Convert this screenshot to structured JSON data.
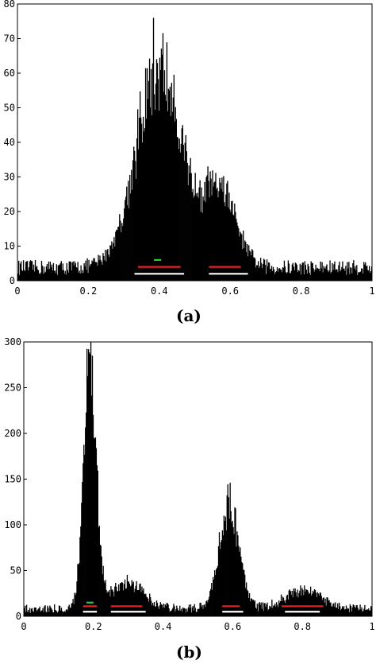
{
  "chart_data": [
    {
      "type": "histogram",
      "panel_label": "(a)",
      "title": "",
      "xlabel": "",
      "ylabel": "",
      "xlim": [
        0,
        1
      ],
      "ylim": [
        0,
        80
      ],
      "x_ticks": [
        0,
        0.2,
        0.4,
        0.6,
        0.8,
        1
      ],
      "x_tick_labels": [
        "0",
        "0.2",
        "0.4",
        "0.6",
        "0.8",
        "1"
      ],
      "y_ticks": [
        0,
        10,
        20,
        30,
        40,
        50,
        60,
        70,
        80
      ],
      "y_tick_labels": [
        "0",
        "10",
        "20",
        "30",
        "40",
        "50",
        "60",
        "70",
        "80"
      ],
      "bins": 450,
      "noise_floor": 4,
      "peak_max": 76,
      "components": [
        {
          "center": 0.4,
          "width": 0.065,
          "height": 57
        },
        {
          "center": 0.57,
          "width": 0.045,
          "height": 22
        }
      ],
      "intervals": [
        {
          "color": "#2ecc2e",
          "x": [
            0.385,
            0.405
          ],
          "y": 6
        },
        {
          "color": "#e62020",
          "x": [
            0.34,
            0.46
          ],
          "y": 4
        },
        {
          "color": "#e62020",
          "x": [
            0.54,
            0.63
          ],
          "y": 4
        },
        {
          "color": "#ffffff",
          "x": [
            0.33,
            0.47
          ],
          "y": 2
        },
        {
          "color": "#ffffff",
          "x": [
            0.54,
            0.65
          ],
          "y": 2
        }
      ]
    },
    {
      "type": "histogram",
      "panel_label": "(b)",
      "title": "",
      "xlabel": "",
      "ylabel": "",
      "xlim": [
        0,
        1
      ],
      "ylim": [
        0,
        300
      ],
      "x_ticks": [
        0,
        0.2,
        0.4,
        0.6,
        0.8,
        1
      ],
      "x_tick_labels": [
        "0",
        "0.2",
        "0.4",
        "0.6",
        "0.8",
        "1"
      ],
      "y_ticks": [
        0,
        50,
        100,
        150,
        200,
        250,
        300
      ],
      "y_tick_labels": [
        "0",
        "50",
        "100",
        "150",
        "200",
        "250",
        "300"
      ],
      "bins": 450,
      "noise_floor": 9,
      "peak_max": 292,
      "components": [
        {
          "center": 0.19,
          "width": 0.018,
          "height": 270
        },
        {
          "center": 0.3,
          "width": 0.045,
          "height": 30
        },
        {
          "center": 0.59,
          "width": 0.028,
          "height": 115
        },
        {
          "center": 0.8,
          "width": 0.05,
          "height": 20
        }
      ],
      "intervals": [
        {
          "color": "#2ecc2e",
          "x": [
            0.18,
            0.2
          ],
          "y": 15
        },
        {
          "color": "#e62020",
          "x": [
            0.17,
            0.21
          ],
          "y": 11
        },
        {
          "color": "#e62020",
          "x": [
            0.25,
            0.34
          ],
          "y": 11
        },
        {
          "color": "#e62020",
          "x": [
            0.57,
            0.62
          ],
          "y": 11
        },
        {
          "color": "#e62020",
          "x": [
            0.74,
            0.86
          ],
          "y": 11
        },
        {
          "color": "#ffffff",
          "x": [
            0.17,
            0.21
          ],
          "y": 5
        },
        {
          "color": "#ffffff",
          "x": [
            0.25,
            0.35
          ],
          "y": 5
        },
        {
          "color": "#ffffff",
          "x": [
            0.57,
            0.63
          ],
          "y": 5
        },
        {
          "color": "#ffffff",
          "x": [
            0.75,
            0.85
          ],
          "y": 5
        }
      ]
    }
  ]
}
